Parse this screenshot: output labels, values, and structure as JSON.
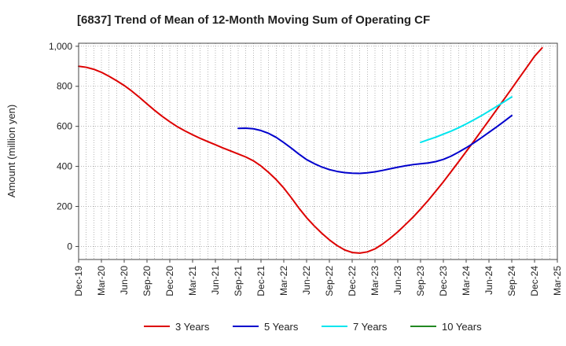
{
  "chart_data": {
    "type": "line",
    "title": "[6837]  Trend of Mean of 12-Month Moving Sum of Operating CF",
    "xlabel": "",
    "ylabel": "Amount (million yen)",
    "ylim": [
      -65,
      1015
    ],
    "yticks": [
      0,
      200,
      400,
      600,
      800,
      1000
    ],
    "ytick_labels": [
      "0",
      "200",
      "400",
      "600",
      "800",
      "1,000"
    ],
    "x_start": "Dec-19",
    "x_end": "Mar-25",
    "x_tick_labels": [
      "Dec-19",
      "Mar-20",
      "Jun-20",
      "Sep-20",
      "Dec-20",
      "Mar-21",
      "Jun-21",
      "Sep-21",
      "Dec-21",
      "Mar-22",
      "Jun-22",
      "Sep-22",
      "Dec-22",
      "Mar-23",
      "Jun-23",
      "Sep-23",
      "Dec-23",
      "Mar-24",
      "Jun-24",
      "Sep-24",
      "Dec-24",
      "Mar-25"
    ],
    "grid": true,
    "legend_position": "bottom",
    "series": [
      {
        "name": "3 Years",
        "color": "#dd0000",
        "start_index": 0,
        "values": [
          900,
          895,
          885,
          870,
          850,
          828,
          804,
          776,
          745,
          712,
          680,
          650,
          623,
          598,
          577,
          558,
          540,
          524,
          508,
          492,
          477,
          462,
          447,
          428,
          402,
          370,
          334,
          292,
          243,
          191,
          144,
          103,
          66,
          33,
          5,
          -17,
          -30,
          -33,
          -27,
          -12,
          12,
          41,
          73,
          109,
          146,
          187,
          230,
          276,
          323,
          373,
          423,
          474,
          525,
          578,
          630,
          683,
          736,
          789,
          843,
          896,
          950,
          992
        ]
      },
      {
        "name": "5 Years",
        "color": "#0000cc",
        "start_index": 21,
        "values": [
          590,
          591,
          588,
          579,
          565,
          545,
          519,
          491,
          461,
          434,
          414,
          397,
          384,
          375,
          369,
          366,
          365,
          368,
          373,
          380,
          388,
          396,
          403,
          409,
          413,
          417,
          424,
          435,
          451,
          471,
          493,
          517,
          543,
          570,
          597,
          625,
          654
        ]
      },
      {
        "name": "7 Years",
        "color": "#00e5ee",
        "start_index": 45,
        "values": [
          520,
          533,
          546,
          561,
          576,
          593,
          612,
          632,
          653,
          676,
          699,
          723,
          747
        ]
      },
      {
        "name": "10 Years",
        "color": "#228822",
        "start_index": 0,
        "values": []
      }
    ]
  }
}
